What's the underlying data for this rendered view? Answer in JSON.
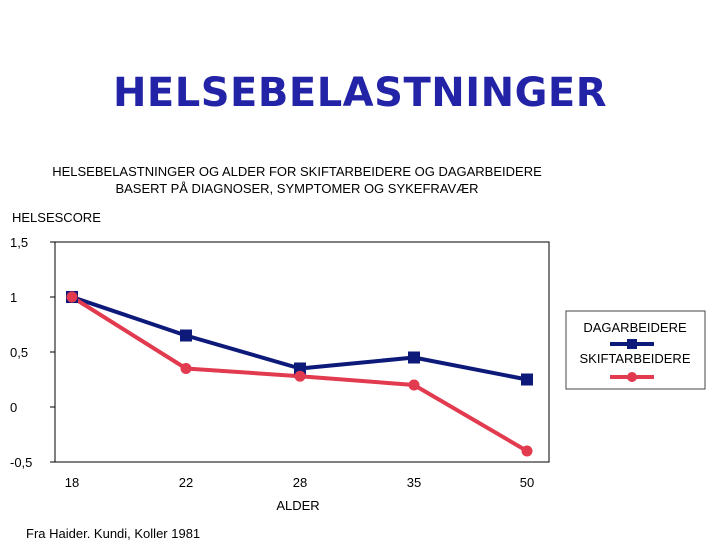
{
  "slide": {
    "title": "HELSEBELASTNINGER",
    "source": "Fra Haider. Kundi, Koller 1981"
  },
  "colors": {
    "title": "#2323a8",
    "dagarbeidere": "#0d1a7a",
    "skiftarbeidere": "#e23a4e"
  },
  "chart_data": {
    "type": "line",
    "title": "HELSEBELASTNINGER OG ALDER FOR SKIFTARBEIDERE OG DAGARBEIDERE",
    "subtitle": "BASERT PÅ DIAGNOSER, SYMPTOMER OG SYKEFRAVÆR",
    "xlabel": "ALDER",
    "ylabel": "HELSESCORE",
    "categories": [
      "18",
      "22",
      "28",
      "35",
      "50"
    ],
    "ylim": [
      -0.5,
      1.5
    ],
    "yticks": [
      1.5,
      1,
      0.5,
      0,
      -0.5
    ],
    "ytick_labels": [
      "1,5",
      "1",
      "0,5",
      "0",
      "-0,5"
    ],
    "grid": false,
    "legend_position": "right",
    "series": [
      {
        "name": "DAGARBEIDERE",
        "marker": "square",
        "values": [
          1.0,
          0.65,
          0.35,
          0.45,
          0.25
        ]
      },
      {
        "name": "SKIFTARBEIDERE",
        "marker": "circle",
        "values": [
          1.0,
          0.35,
          0.28,
          0.2,
          -0.4
        ]
      }
    ]
  }
}
